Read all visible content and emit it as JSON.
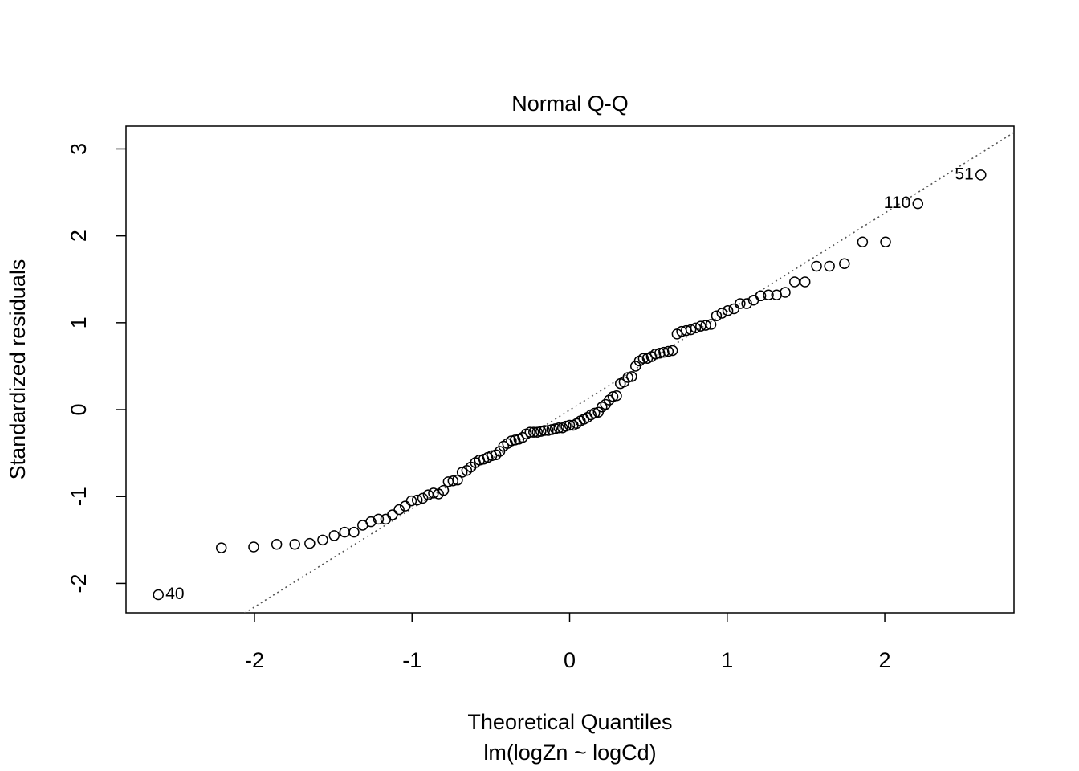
{
  "chart_data": {
    "type": "scatter",
    "title": "Normal Q-Q",
    "x_label": "Theoretical Quantiles",
    "subtitle": "lm(logZn ~ logCd)",
    "y_label": "Standardized residuals",
    "x": [
      -2.61,
      -2.21,
      -2.005,
      -1.859,
      -1.744,
      -1.649,
      -1.567,
      -1.494,
      -1.428,
      -1.368,
      -1.313,
      -1.261,
      -1.213,
      -1.167,
      -1.124,
      -1.082,
      -1.043,
      -1.004,
      -0.967,
      -0.932,
      -0.897,
      -0.864,
      -0.832,
      -0.8,
      -0.77,
      -0.74,
      -0.711,
      -0.682,
      -0.653,
      -0.626,
      -0.598,
      -0.572,
      -0.545,
      -0.519,
      -0.494,
      -0.468,
      -0.443,
      -0.419,
      -0.394,
      -0.37,
      -0.346,
      -0.322,
      -0.298,
      -0.275,
      -0.251,
      -0.228,
      -0.205,
      -0.182,
      -0.159,
      -0.136,
      -0.113,
      -0.091,
      -0.068,
      -0.045,
      -0.023,
      0,
      0.023,
      0.045,
      0.068,
      0.091,
      0.113,
      0.136,
      0.159,
      0.182,
      0.205,
      0.228,
      0.251,
      0.275,
      0.298,
      0.322,
      0.346,
      0.37,
      0.394,
      0.419,
      0.443,
      0.468,
      0.494,
      0.519,
      0.545,
      0.572,
      0.598,
      0.626,
      0.653,
      0.682,
      0.711,
      0.74,
      0.77,
      0.8,
      0.832,
      0.864,
      0.897,
      0.932,
      0.967,
      1.004,
      1.043,
      1.082,
      1.124,
      1.167,
      1.213,
      1.261,
      1.313,
      1.368,
      1.428,
      1.494,
      1.567,
      1.649,
      1.744,
      1.859,
      2.005,
      2.21,
      2.61
    ],
    "values": [
      -2.13,
      -1.59,
      -1.58,
      -1.55,
      -1.55,
      -1.54,
      -1.5,
      -1.45,
      -1.41,
      -1.41,
      -1.33,
      -1.29,
      -1.26,
      -1.26,
      -1.21,
      -1.15,
      -1.11,
      -1.05,
      -1.04,
      -1.02,
      -0.98,
      -0.96,
      -0.97,
      -0.93,
      -0.83,
      -0.82,
      -0.81,
      -0.72,
      -0.7,
      -0.66,
      -0.61,
      -0.58,
      -0.57,
      -0.55,
      -0.53,
      -0.52,
      -0.48,
      -0.42,
      -0.39,
      -0.36,
      -0.35,
      -0.34,
      -0.32,
      -0.28,
      -0.26,
      -0.26,
      -0.26,
      -0.25,
      -0.24,
      -0.24,
      -0.23,
      -0.22,
      -0.21,
      -0.21,
      -0.19,
      -0.18,
      -0.18,
      -0.16,
      -0.13,
      -0.11,
      -0.09,
      -0.06,
      -0.04,
      -0.03,
      0.03,
      0.06,
      0.11,
      0.15,
      0.16,
      0.3,
      0.32,
      0.37,
      0.38,
      0.5,
      0.56,
      0.59,
      0.59,
      0.61,
      0.64,
      0.65,
      0.66,
      0.67,
      0.68,
      0.87,
      0.9,
      0.91,
      0.92,
      0.94,
      0.96,
      0.97,
      0.98,
      1.08,
      1.11,
      1.14,
      1.16,
      1.22,
      1.22,
      1.26,
      1.31,
      1.32,
      1.32,
      1.35,
      1.47,
      1.47,
      1.65,
      1.65,
      1.68,
      1.93,
      1.93,
      2.37,
      2.7
    ],
    "color": "#000000",
    "xlim": [
      -2.815,
      2.82
    ],
    "ylim": [
      -2.338,
      3.263
    ],
    "xticks": [
      -2,
      -1,
      0,
      1,
      2
    ],
    "yticks": [
      -2,
      -1,
      0,
      1,
      2,
      3
    ],
    "ref_line": {
      "intercept": -0.005,
      "slope": 1.133,
      "color": "#555555"
    },
    "annotations": [
      {
        "text": "40",
        "x": -2.61,
        "y": -2.13
      },
      {
        "text": "110",
        "x": 2.21,
        "y": 2.37
      },
      {
        "text": "51",
        "x": 2.61,
        "y": 2.7
      }
    ]
  }
}
